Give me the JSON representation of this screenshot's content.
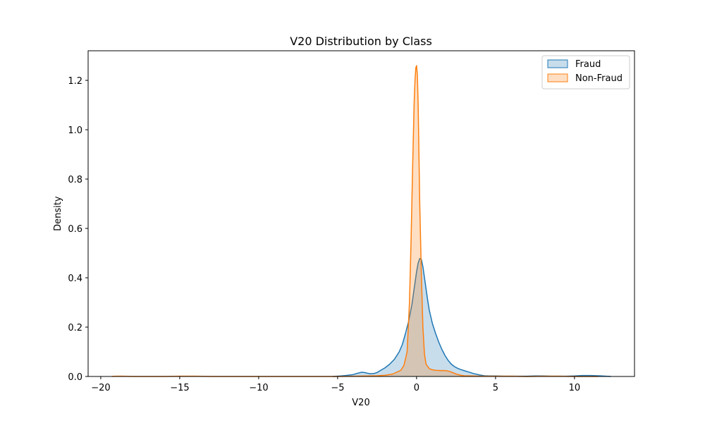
{
  "chart_data": {
    "type": "area",
    "title": "V20 Distribution by Class",
    "xlabel": "V20",
    "ylabel": "Density",
    "xlim": [
      -20.8,
      13.8
    ],
    "ylim": [
      0,
      1.32
    ],
    "xticks": [
      -20,
      -15,
      -10,
      -5,
      0,
      5,
      10
    ],
    "xtick_labels": [
      "−20",
      "−15",
      "−10",
      "−5",
      "0",
      "5",
      "10"
    ],
    "yticks": [
      0,
      0.2,
      0.4,
      0.6,
      0.8,
      1.0,
      1.2
    ],
    "ytick_labels": [
      "0.0",
      "0.2",
      "0.4",
      "0.6",
      "0.8",
      "1.0",
      "1.2"
    ],
    "grid": false,
    "legend_position": "top-right",
    "series": [
      {
        "name": "Fraud",
        "color": "#1f77b4",
        "x": [
          -5.3,
          -4.8,
          -4.5,
          -4.2,
          -4.0,
          -3.8,
          -3.5,
          -3.3,
          -3.1,
          -2.9,
          -2.7,
          -2.5,
          -2.3,
          -2.0,
          -1.7,
          -1.4,
          -1.1,
          -0.9,
          -0.7,
          -0.5,
          -0.3,
          -0.2,
          -0.1,
          0.0,
          0.1,
          0.2,
          0.3,
          0.4,
          0.5,
          0.6,
          0.7,
          0.8,
          1.0,
          1.2,
          1.4,
          1.6,
          1.8,
          2.0,
          2.2,
          2.4,
          2.6,
          2.8,
          3.0,
          3.3,
          3.6,
          4.0,
          4.3,
          4.6,
          5.0,
          5.5,
          6.0,
          6.5,
          7.0,
          7.5,
          8.0,
          8.5,
          9.0,
          9.5,
          10.0,
          10.5,
          11.0,
          11.5,
          12.0,
          12.3
        ],
        "y": [
          0.0,
          0.002,
          0.004,
          0.006,
          0.008,
          0.012,
          0.017,
          0.016,
          0.013,
          0.011,
          0.012,
          0.016,
          0.024,
          0.035,
          0.05,
          0.07,
          0.1,
          0.13,
          0.175,
          0.225,
          0.29,
          0.335,
          0.38,
          0.425,
          0.46,
          0.478,
          0.475,
          0.445,
          0.4,
          0.355,
          0.31,
          0.27,
          0.215,
          0.175,
          0.14,
          0.11,
          0.085,
          0.065,
          0.05,
          0.04,
          0.033,
          0.028,
          0.024,
          0.018,
          0.012,
          0.006,
          0.003,
          0.002,
          0.002,
          0.001,
          0.001,
          0.001,
          0.001,
          0.002,
          0.002,
          0.001,
          0.001,
          0.001,
          0.002,
          0.004,
          0.004,
          0.003,
          0.001,
          0.0
        ]
      },
      {
        "name": "Non-Fraud",
        "color": "#ff7f0e",
        "x": [
          -19.3,
          -19.0,
          -18.6,
          -18.0,
          -17.0,
          -16.0,
          -15.0,
          -14.5,
          -14.0,
          -13.0,
          -12.0,
          -11.0,
          -10.0,
          -9.0,
          -8.0,
          -7.0,
          -6.0,
          -5.0,
          -4.0,
          -3.0,
          -2.5,
          -2.0,
          -1.5,
          -1.0,
          -0.8,
          -0.6,
          -0.45,
          -0.35,
          -0.25,
          -0.15,
          -0.1,
          -0.05,
          0.0,
          0.05,
          0.1,
          0.15,
          0.2,
          0.3,
          0.4,
          0.5,
          0.6,
          0.8,
          1.0,
          1.2,
          1.5,
          1.8,
          2.0,
          2.2,
          2.5,
          2.8,
          3.0,
          3.5,
          4.0,
          5.0,
          6.0,
          7.0,
          8.0,
          9.0,
          10.0,
          11.0,
          11.5
        ],
        "y": [
          0.0,
          0.001,
          0.001,
          0.0,
          0.0,
          0.0,
          0.001,
          0.001,
          0.001,
          0.0,
          0.0,
          0.0,
          0.0,
          0.0,
          0.0,
          0.0,
          0.0,
          0.0,
          0.001,
          0.002,
          0.003,
          0.005,
          0.01,
          0.025,
          0.045,
          0.1,
          0.3,
          0.55,
          0.85,
          1.12,
          1.2,
          1.25,
          1.26,
          1.22,
          1.1,
          0.9,
          0.7,
          0.42,
          0.2,
          0.09,
          0.05,
          0.032,
          0.027,
          0.025,
          0.024,
          0.024,
          0.022,
          0.018,
          0.01,
          0.005,
          0.003,
          0.002,
          0.001,
          0.001,
          0.001,
          0.0,
          0.001,
          0.001,
          0.0,
          0.0,
          0.0
        ]
      }
    ]
  }
}
